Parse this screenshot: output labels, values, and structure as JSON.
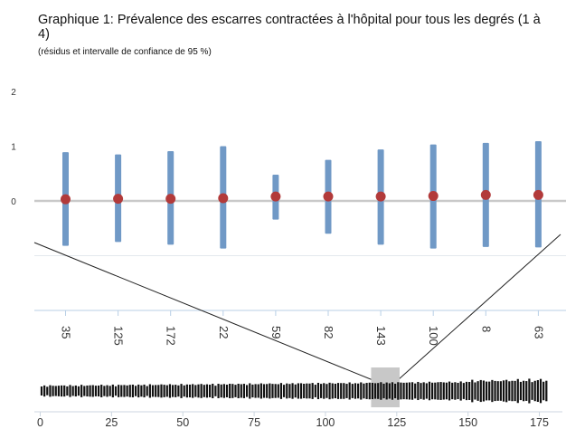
{
  "chart_data": {
    "title": "Graphique 1: Prévalence des escarres contractées à l'hôpital pour tous les degrés (1 à 4)",
    "subtitle": "(résidus et intervalle de confiance de 95 %)",
    "main": {
      "type": "scatter",
      "categories": [
        "35",
        "125",
        "172",
        "22",
        "59",
        "82",
        "143",
        "100",
        "8",
        "63"
      ],
      "points": [
        0.03,
        0.04,
        0.04,
        0.05,
        0.08,
        0.08,
        0.08,
        0.09,
        0.11,
        0.11
      ],
      "ci_low": [
        -0.82,
        -0.75,
        -0.8,
        -0.87,
        -0.34,
        -0.6,
        -0.8,
        -0.87,
        -0.84,
        -0.85
      ],
      "ci_high": [
        0.89,
        0.85,
        0.91,
        1.0,
        0.48,
        0.75,
        0.94,
        1.03,
        1.06,
        1.09
      ],
      "yticks": [
        2,
        1,
        0
      ],
      "ylim": [
        -2,
        2
      ],
      "grid": true,
      "colors": {
        "interval": "#7099c6",
        "point": "#b23a3a",
        "zero_line": "#c9c9c9",
        "grid": "#e3e8ee",
        "axis": "#b8cfe6"
      }
    },
    "overview": {
      "type": "bar",
      "xticks": [
        "0",
        "25",
        "50",
        "75",
        "100",
        "125",
        "150",
        "175"
      ],
      "xlim": [
        0,
        178
      ],
      "n_bars": 178,
      "highlight": [
        116,
        126
      ],
      "colors": {
        "bars": "#111111",
        "highlight": "#c8c8c8"
      }
    }
  }
}
